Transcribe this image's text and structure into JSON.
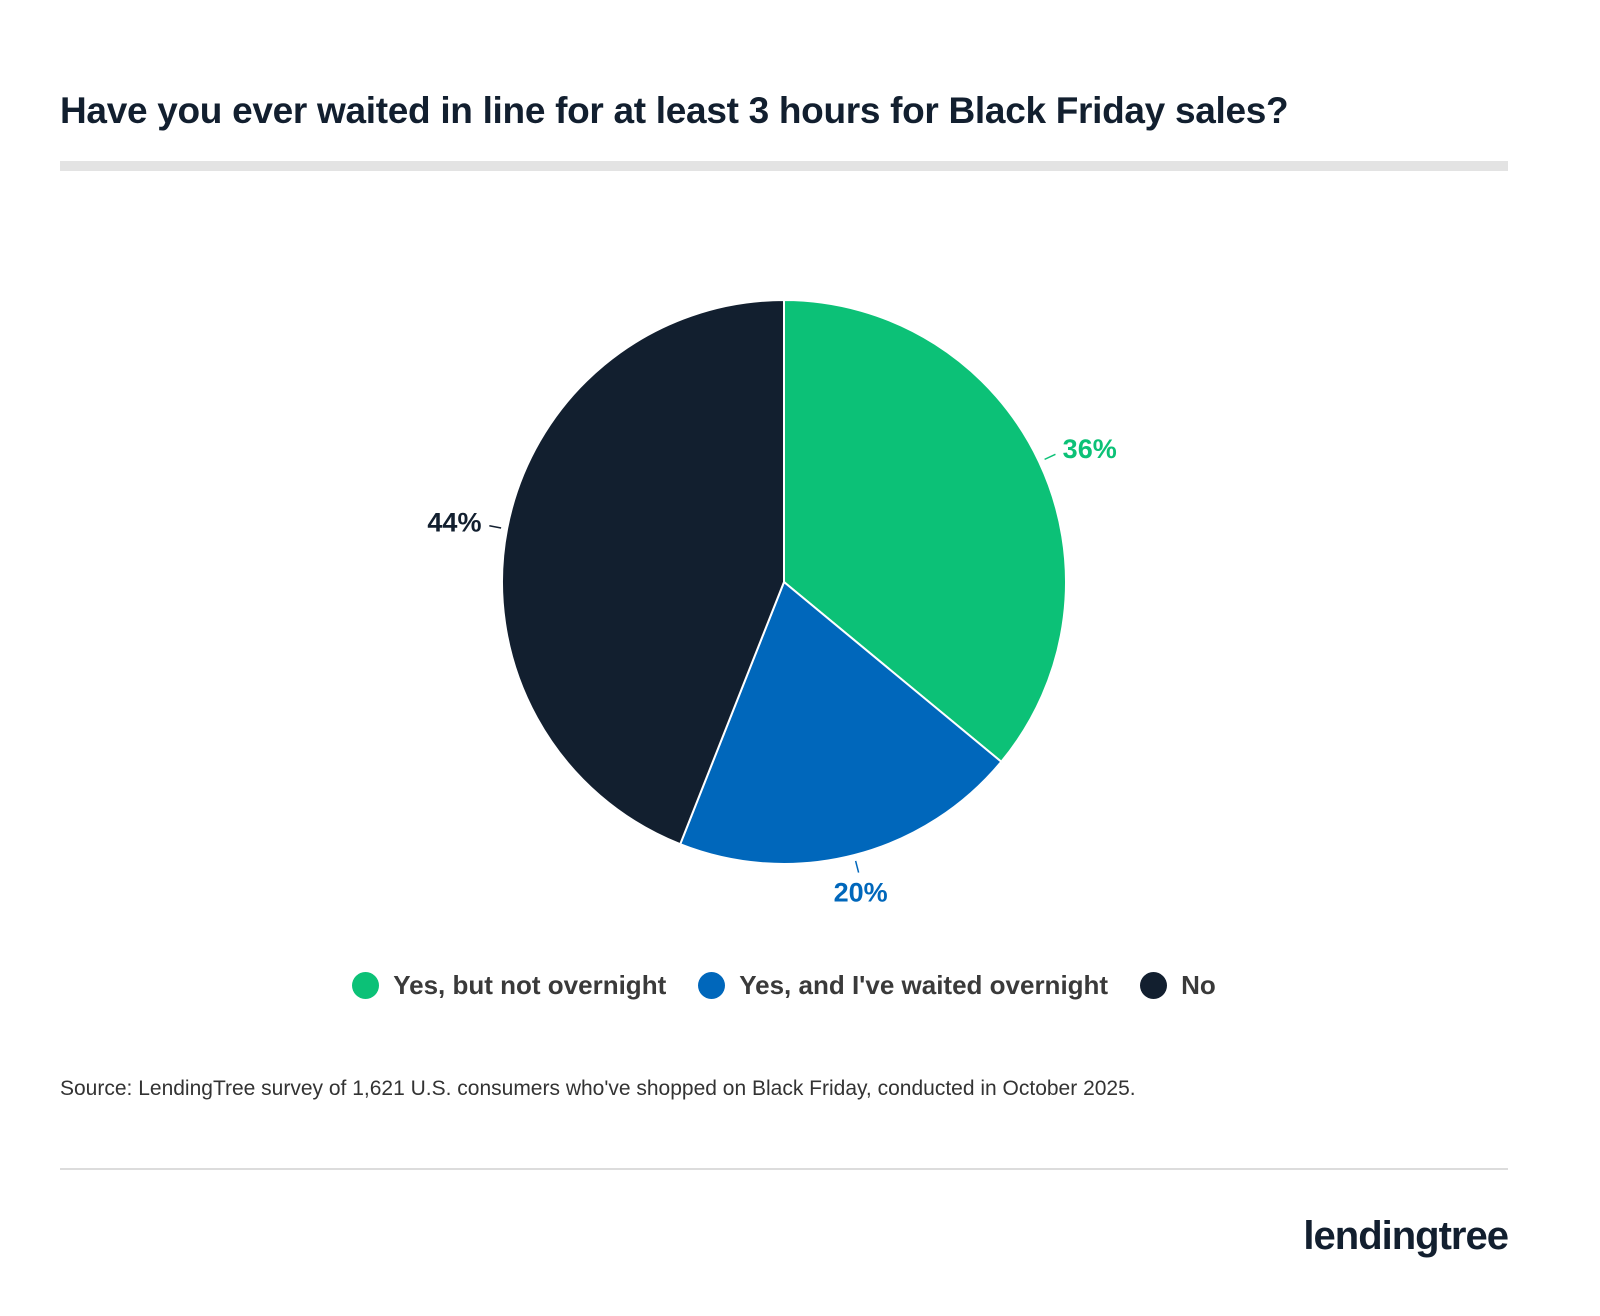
{
  "chart_data": {
    "type": "pie",
    "title": "Have you ever waited in line for at least 3 hours for Black Friday sales?",
    "categories": [
      "Yes, but not overnight",
      "Yes, and I've waited overnight",
      "No"
    ],
    "values": [
      36,
      20,
      44
    ],
    "value_labels": [
      "36%",
      "20%",
      "44%"
    ],
    "colors": [
      "#0cc177",
      "#0067bb",
      "#121f2f"
    ],
    "source": "Source: LendingTree survey of 1,621 U.S. consumers who've shopped on Black Friday, conducted in October 2025."
  },
  "logo": "lendingtree"
}
